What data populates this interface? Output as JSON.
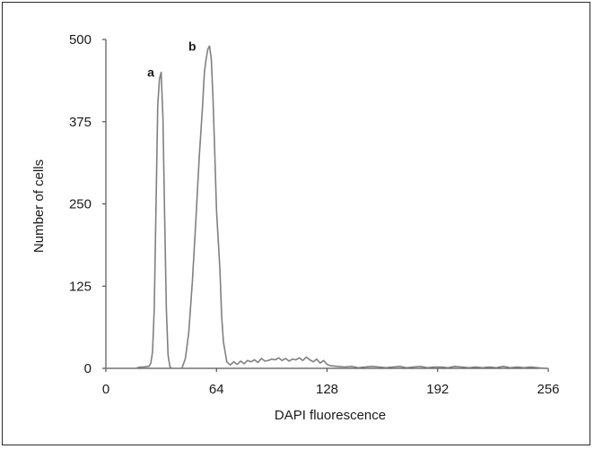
{
  "chart_data": {
    "type": "line",
    "title": "",
    "xlabel": "DAPI fluorescence",
    "ylabel": "Number of cells",
    "xlim": [
      0,
      256
    ],
    "ylim": [
      0,
      500
    ],
    "xticks": [
      0,
      64,
      128,
      192,
      256
    ],
    "yticks": [
      0,
      125,
      250,
      375,
      500
    ],
    "grid": false,
    "series": [
      {
        "color": "#808080",
        "x": [
          0,
          17,
          20,
          22,
          24,
          25,
          26,
          27,
          28,
          29,
          30,
          31,
          32,
          33,
          34,
          35,
          36,
          37,
          38,
          40,
          44,
          46,
          48,
          50,
          52,
          54,
          56,
          57,
          58,
          59,
          60,
          61,
          62,
          63,
          64,
          66,
          67,
          68,
          70,
          72,
          74,
          76,
          78,
          80,
          82,
          84,
          86,
          88,
          90,
          92,
          94,
          96,
          98,
          100,
          102,
          104,
          106,
          108,
          110,
          112,
          114,
          116,
          118,
          120,
          122,
          124,
          126,
          128,
          130,
          134,
          138,
          142,
          146,
          150,
          154,
          158,
          162,
          166,
          170,
          174,
          178,
          182,
          186,
          190,
          194,
          198,
          202,
          206,
          210,
          214,
          218,
          222,
          226,
          230,
          234,
          238,
          242,
          246,
          250,
          254,
          256
        ],
        "y": [
          0,
          0,
          2,
          2,
          3,
          3,
          8,
          25,
          90,
          240,
          400,
          440,
          450,
          380,
          230,
          90,
          20,
          3,
          0,
          0,
          0,
          15,
          55,
          130,
          220,
          320,
          400,
          450,
          470,
          485,
          490,
          470,
          410,
          330,
          240,
          150,
          80,
          40,
          10,
          5,
          10,
          6,
          11,
          7,
          12,
          10,
          13,
          9,
          15,
          11,
          12,
          14,
          13,
          16,
          12,
          15,
          11,
          14,
          13,
          16,
          12,
          17,
          13,
          10,
          14,
          8,
          12,
          6,
          4,
          3,
          2,
          3,
          1,
          2,
          3,
          2,
          1,
          2,
          3,
          1,
          2,
          3,
          1,
          2,
          2,
          1,
          3,
          2,
          1,
          2,
          1,
          2,
          1,
          3,
          1,
          2,
          1,
          2,
          1,
          0,
          0
        ]
      }
    ],
    "annotations": [
      {
        "text": "a",
        "x": 26,
        "y": 450
      },
      {
        "text": "b",
        "x": 50,
        "y": 490
      }
    ]
  }
}
